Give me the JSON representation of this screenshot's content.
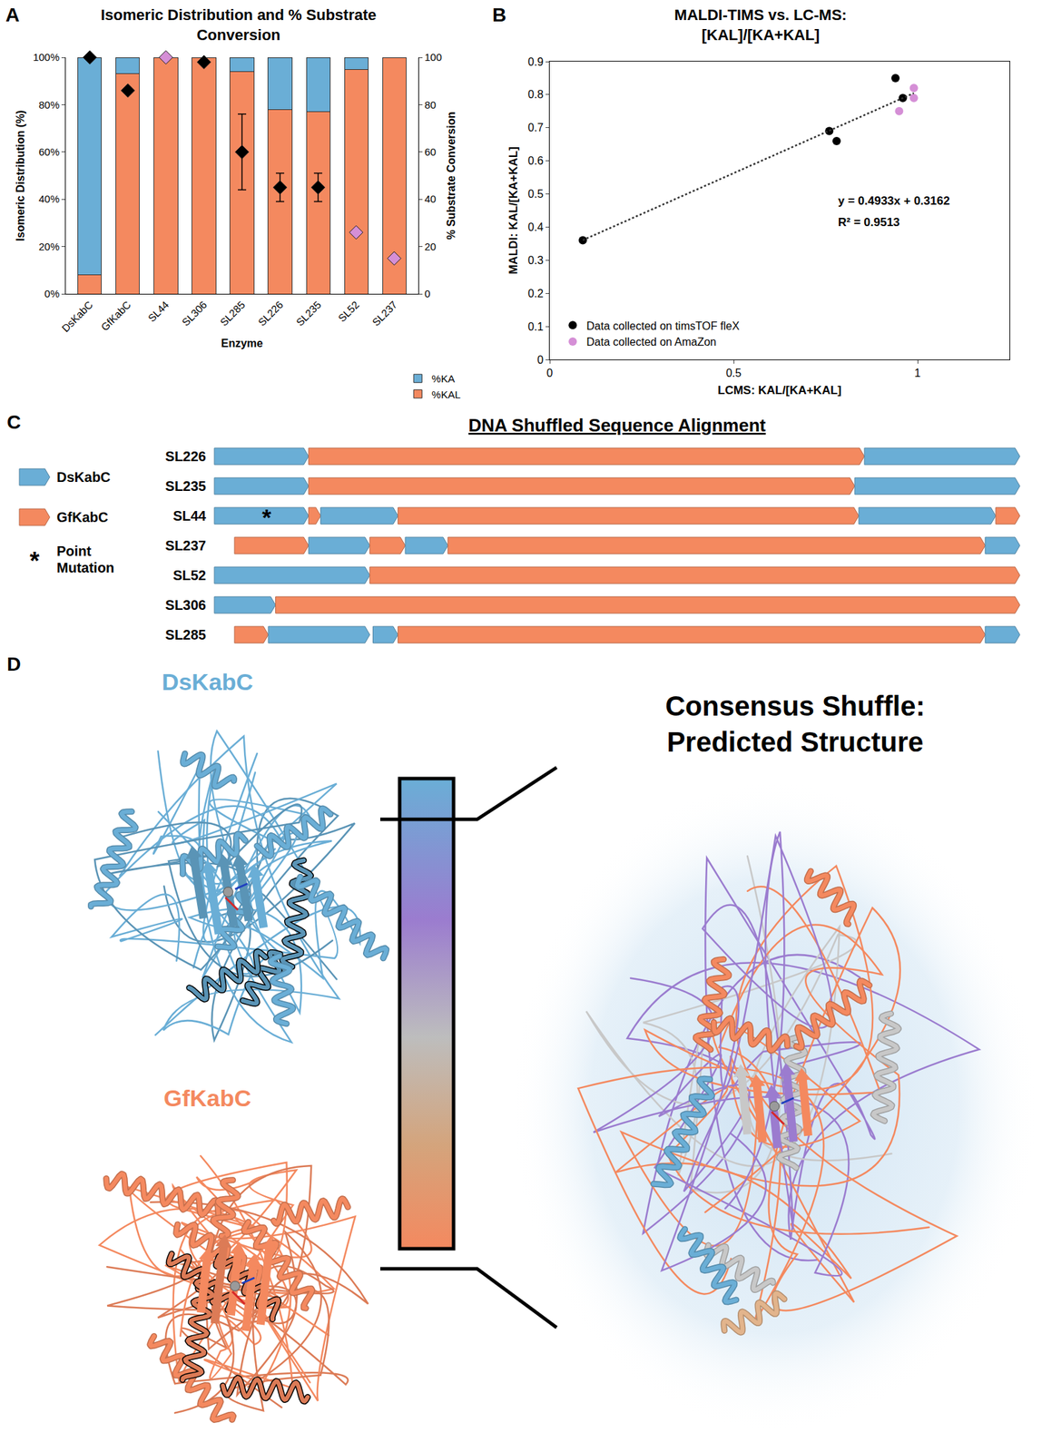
{
  "chart_data": [
    {
      "panel": "A",
      "type": "bar",
      "stacked": true,
      "title": "Isomeric Distribution and % Substrate Conversion",
      "categories": [
        "DsKabC",
        "GfKabC",
        "SL44",
        "SL306",
        "SL285",
        "SL226",
        "SL235",
        "SL52",
        "SL237"
      ],
      "x_label": "Enzyme",
      "y_label": "Isomeric Distribution (%)",
      "y2_label": "% Substrate Conversion",
      "ylim": [
        0,
        100
      ],
      "yticks": [
        {
          "value": 0,
          "label": "0%"
        },
        {
          "value": 20,
          "label": "20%"
        },
        {
          "value": 40,
          "label": "40%"
        },
        {
          "value": 60,
          "label": "60%"
        },
        {
          "value": 80,
          "label": "80%"
        },
        {
          "value": 100,
          "label": "100%"
        }
      ],
      "y2lim": [
        0,
        100
      ],
      "y2ticks": [
        0,
        20,
        40,
        60,
        80,
        100
      ],
      "grid": false,
      "legend": "bottom right",
      "series": [
        {
          "name": "%KAL",
          "color": "#f4895f",
          "values": [
            8,
            93,
            100,
            100,
            94,
            78,
            77,
            95,
            100
          ]
        },
        {
          "name": "%KA",
          "color": "#6aaed6",
          "values": [
            92,
            7,
            0,
            0,
            6,
            22,
            23,
            5,
            0
          ]
        },
        {
          "type": "scatter",
          "marker": "diamond",
          "axis": "y2",
          "colors": [
            "#000000",
            "#000000",
            "#d58fd6",
            "#000000",
            "#000000",
            "#000000",
            "#000000",
            "#d58fd6",
            "#d58fd6"
          ],
          "values": [
            100,
            86,
            100,
            98,
            60,
            45,
            45,
            26,
            15
          ],
          "errors": [
            null,
            null,
            null,
            null,
            16,
            6,
            6,
            null,
            null
          ]
        }
      ]
    },
    {
      "panel": "B",
      "type": "scatter",
      "title": "MALDI-TIMS vs. LC-MS: [KAL]/[KA+KAL]",
      "x_label": "LCMS: KAL/[KA+KAL]",
      "y_label": "MALDI: KAL/[KA+KAL]",
      "xlim": [
        0,
        1.25
      ],
      "xticks": [
        0,
        0.5,
        1
      ],
      "ylim": [
        0,
        0.9
      ],
      "yticks": [
        0,
        0.1,
        0.2,
        0.3,
        0.4,
        0.5,
        0.6,
        0.7,
        0.8,
        0.9
      ],
      "grid": false,
      "legend": "bottom left",
      "series": [
        {
          "name": "Data collected on timsTOF fleX",
          "color": "#000000",
          "marker": "circle",
          "x": [
            0.09,
            0.76,
            0.78,
            0.94,
            0.96
          ],
          "values": [
            0.36,
            0.69,
            0.66,
            0.85,
            0.79
          ]
        },
        {
          "name": "Data collected on AmaZon",
          "color": "#d58fd6",
          "marker": "circle",
          "x": [
            0.95,
            0.99,
            0.99
          ],
          "values": [
            0.75,
            0.82,
            0.79
          ]
        }
      ],
      "trendline": {
        "slope": 0.4933,
        "intercept": 0.3162,
        "line_style": "dotted"
      },
      "annotations": [
        "y = 0.4933x + 0.3162",
        "R² = 0.9513"
      ]
    }
  ],
  "diagram": {
    "panel": "C",
    "title": "DNA Shuffled Sequence Alignment",
    "legend_items": [
      {
        "label": "DsKabC",
        "color": "#6aaed6"
      },
      {
        "label": "GfKabC",
        "color": "#f4895f"
      },
      {
        "label": "Point Mutation",
        "symbol": "*"
      }
    ],
    "rows": [
      {
        "name": "SL226",
        "segments": [
          {
            "parent": "DsKabC",
            "start": 0,
            "end": 11.7
          },
          {
            "parent": "GfKabC",
            "start": 11.7,
            "end": 80.7
          },
          {
            "parent": "DsKabC",
            "start": 80.7,
            "end": 100
          }
        ]
      },
      {
        "name": "SL235",
        "segments": [
          {
            "parent": "DsKabC",
            "start": 0,
            "end": 11.7
          },
          {
            "parent": "GfKabC",
            "start": 11.7,
            "end": 79.5
          },
          {
            "parent": "DsKabC",
            "start": 79.5,
            "end": 100
          }
        ]
      },
      {
        "name": "SL44",
        "mutation_at": 6.5,
        "segments": [
          {
            "parent": "DsKabC",
            "start": 0,
            "end": 11.7
          },
          {
            "parent": "GfKabC",
            "start": 11.7,
            "end": 13.2
          },
          {
            "parent": "DsKabC",
            "start": 13.2,
            "end": 22.8
          },
          {
            "parent": "GfKabC",
            "start": 22.8,
            "end": 80
          },
          {
            "parent": "DsKabC",
            "start": 80,
            "end": 97
          },
          {
            "parent": "GfKabC",
            "start": 97,
            "end": 100
          }
        ]
      },
      {
        "name": "SL237",
        "segments": [
          {
            "parent": "GfKabC",
            "start": 2.5,
            "end": 11.7
          },
          {
            "parent": "DsKabC",
            "start": 11.7,
            "end": 19.3
          },
          {
            "parent": "GfKabC",
            "start": 19.3,
            "end": 23.7
          },
          {
            "parent": "DsKabC",
            "start": 23.7,
            "end": 29
          },
          {
            "parent": "GfKabC",
            "start": 29,
            "end": 95.7
          },
          {
            "parent": "DsKabC",
            "start": 95.7,
            "end": 100
          }
        ]
      },
      {
        "name": "SL52",
        "segments": [
          {
            "parent": "DsKabC",
            "start": 0,
            "end": 19.3
          },
          {
            "parent": "GfKabC",
            "start": 19.3,
            "end": 100
          }
        ]
      },
      {
        "name": "SL306",
        "segments": [
          {
            "parent": "DsKabC",
            "start": 0,
            "end": 7.6
          },
          {
            "parent": "GfKabC",
            "start": 7.6,
            "end": 100
          }
        ]
      },
      {
        "name": "SL285",
        "segments": [
          {
            "parent": "GfKabC",
            "start": 2.5,
            "end": 6.7
          },
          {
            "parent": "DsKabC",
            "start": 6.7,
            "end": 19.3
          },
          {
            "parent": "DsKabC",
            "start": 19.7,
            "end": 22.8
          },
          {
            "parent": "GfKabC",
            "start": 22.8,
            "end": 95.7
          },
          {
            "parent": "DsKabC",
            "start": 95.7,
            "end": 100
          }
        ]
      }
    ]
  },
  "structures": {
    "panel": "D",
    "proteins": [
      {
        "label": "DsKabC",
        "color": "#6aaed6"
      },
      {
        "label": "GfKabC",
        "color": "#f4895f"
      }
    ],
    "consensus_title": "Consensus Shuffle: Predicted Structure"
  }
}
